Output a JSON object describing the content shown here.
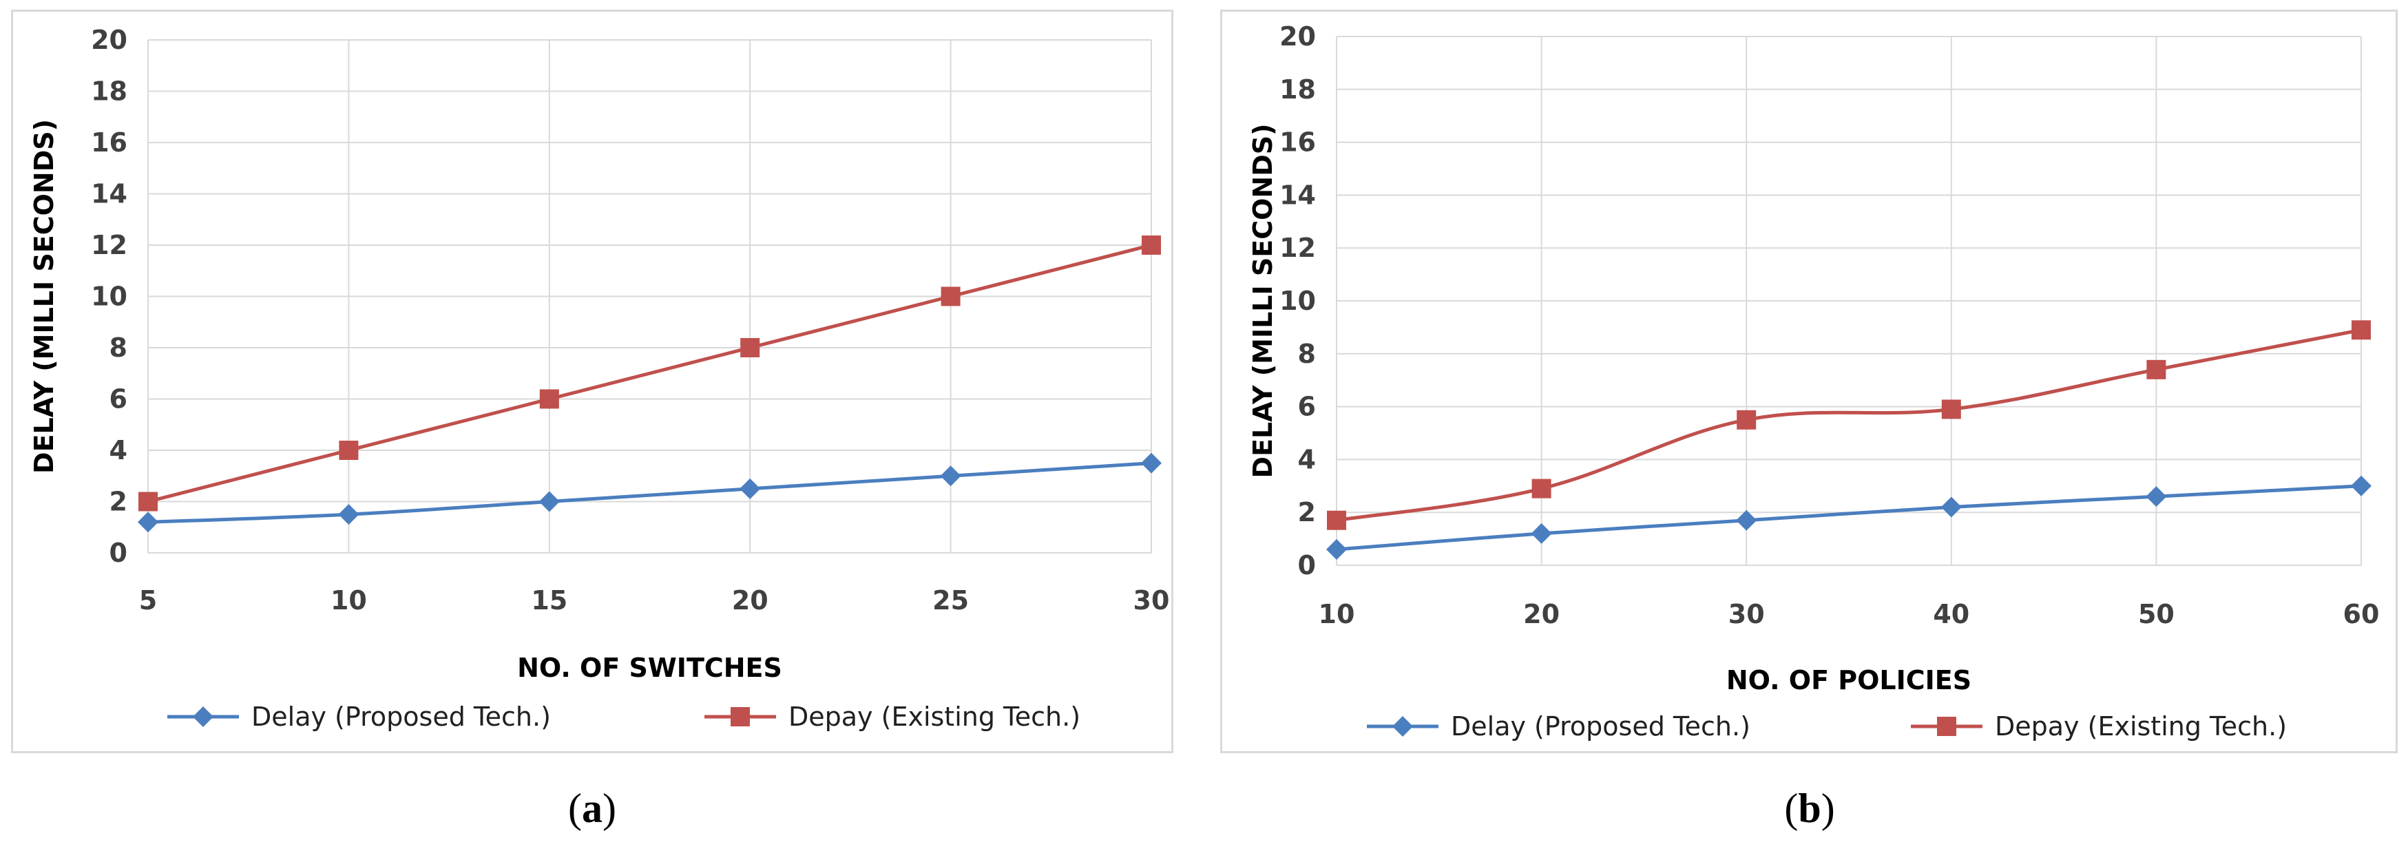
{
  "chart_data": [
    {
      "type": "line",
      "panel_label": "a",
      "title": "",
      "xlabel": "NO. OF SWITCHES",
      "ylabel": "DELAY  (MILLI SECONDS)",
      "categories": [
        "5",
        "10",
        "15",
        "20",
        "25",
        "30"
      ],
      "xlim": [
        5,
        30
      ],
      "ylim": [
        0,
        20
      ],
      "yticks": [
        "0",
        "2",
        "4",
        "6",
        "8",
        "10",
        "12",
        "14",
        "16",
        "18",
        "20"
      ],
      "grid": true,
      "legend_position": "bottom",
      "series": [
        {
          "name": "Delay (Proposed Tech.)",
          "color": "#4a7ebf",
          "marker": "diamond",
          "x": [
            5,
            10,
            15,
            20,
            25,
            30
          ],
          "values": [
            1.2,
            1.5,
            2.0,
            2.5,
            3.0,
            3.5
          ]
        },
        {
          "name": "Depay (Existing Tech.)",
          "color": "#c0504d",
          "marker": "square",
          "x": [
            5,
            10,
            15,
            20,
            25,
            30
          ],
          "values": [
            2.0,
            4.0,
            6.0,
            8.0,
            10.0,
            12.0
          ]
        }
      ]
    },
    {
      "type": "line",
      "panel_label": "b",
      "title": "",
      "xlabel": "NO. OF POLICIES",
      "ylabel": "DELAY  (MILLI SECONDS)",
      "categories": [
        "10",
        "20",
        "30",
        "40",
        "50",
        "60"
      ],
      "xlim": [
        10,
        60
      ],
      "ylim": [
        0,
        20
      ],
      "yticks": [
        "0",
        "2",
        "4",
        "6",
        "8",
        "10",
        "12",
        "14",
        "16",
        "18",
        "20"
      ],
      "grid": true,
      "legend_position": "bottom",
      "series": [
        {
          "name": "Delay (Proposed Tech.)",
          "color": "#4a7ebf",
          "marker": "diamond",
          "x": [
            10,
            20,
            30,
            40,
            50,
            60
          ],
          "values": [
            0.6,
            1.2,
            1.7,
            2.2,
            2.6,
            3.0
          ]
        },
        {
          "name": "Depay (Existing Tech.)",
          "color": "#c0504d",
          "marker": "square",
          "x": [
            10,
            20,
            30,
            40,
            50,
            60
          ],
          "values": [
            1.7,
            2.9,
            5.5,
            5.9,
            7.4,
            8.9
          ]
        }
      ]
    }
  ],
  "captions": [
    {
      "open": "(",
      "label": "a",
      "close": ")"
    },
    {
      "open": "(",
      "label": "b",
      "close": ")"
    }
  ]
}
